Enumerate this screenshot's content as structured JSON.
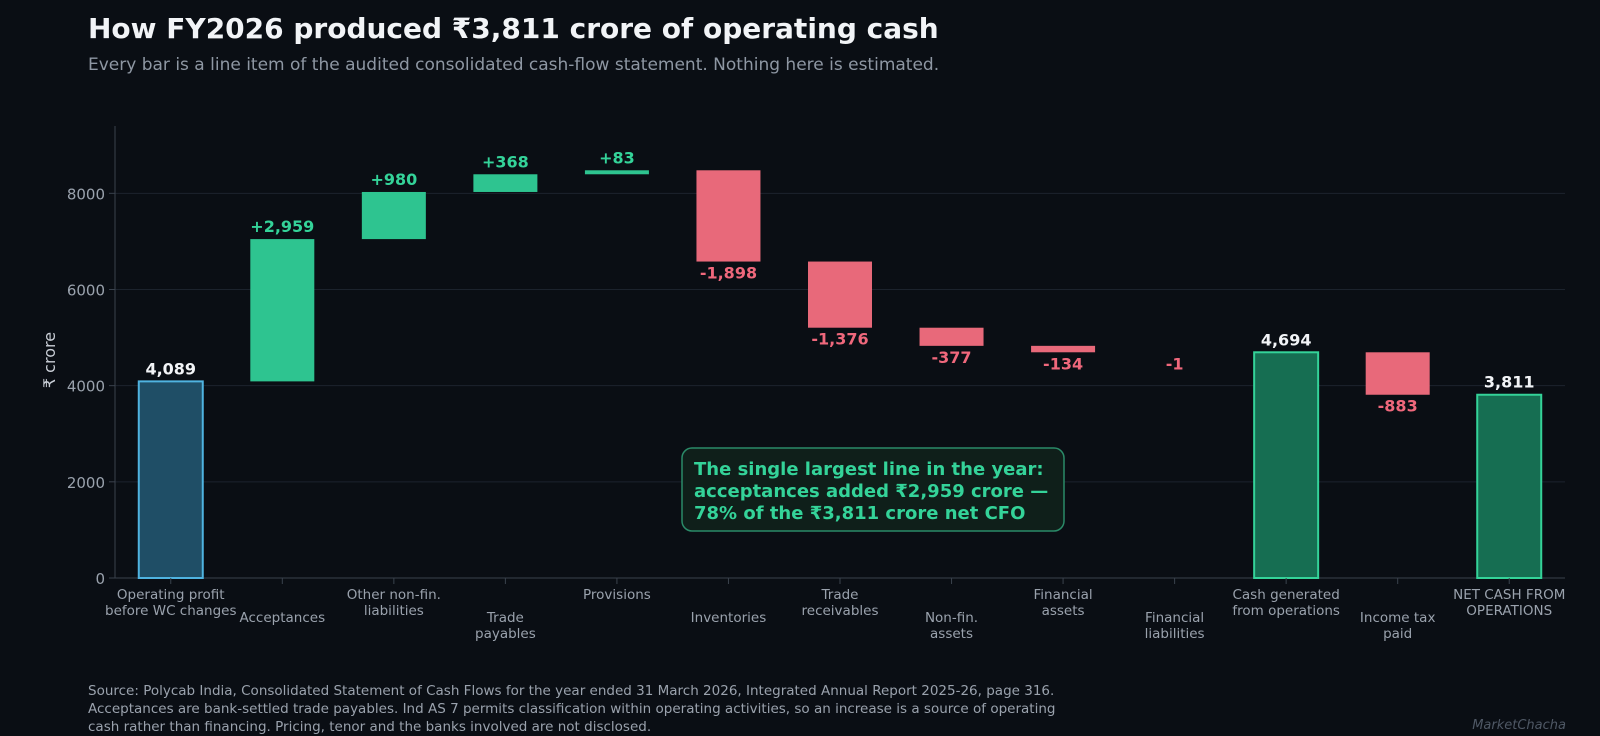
{
  "header": {
    "title": "How FY2026 produced ₹3,811 crore of operating cash",
    "subtitle": "Every bar is a line item of the audited consolidated cash-flow statement. Nothing here is estimated."
  },
  "chart_data": {
    "type": "bar",
    "subtype": "waterfall",
    "ylabel": "₹ crore",
    "ylim": [
      0,
      9400
    ],
    "yticks": [
      0,
      2000,
      4000,
      6000,
      8000
    ],
    "grid": true,
    "categories": [
      [
        "Operating profit",
        "before WC changes"
      ],
      [
        "Acceptances"
      ],
      [
        "Other non-fin.",
        "liabilities"
      ],
      [
        "Trade",
        "payables"
      ],
      [
        "Provisions"
      ],
      [
        "Inventories"
      ],
      [
        "Trade",
        "receivables"
      ],
      [
        "Non-fin.",
        "assets"
      ],
      [
        "Financial",
        "assets"
      ],
      [
        "Financial",
        "liabilities"
      ],
      [
        "Cash generated",
        "from operations"
      ],
      [
        "Income tax",
        "paid"
      ],
      [
        "NET CASH FROM",
        "OPERATIONS"
      ]
    ],
    "bars": [
      {
        "kind": "total",
        "base": 0,
        "top": 4089,
        "value_label": "4,089",
        "fill": "#1f4e66",
        "stroke": "#4fb3e0"
      },
      {
        "kind": "increase",
        "base": 4089,
        "top": 7048,
        "value_label": "+2,959"
      },
      {
        "kind": "increase",
        "base": 7048,
        "top": 8028,
        "value_label": "+980"
      },
      {
        "kind": "increase",
        "base": 8028,
        "top": 8396,
        "value_label": "+368"
      },
      {
        "kind": "increase",
        "base": 8396,
        "top": 8479,
        "value_label": "+83"
      },
      {
        "kind": "decrease",
        "base": 8479,
        "top": 6581,
        "value_label": "-1,898"
      },
      {
        "kind": "decrease",
        "base": 6581,
        "top": 5205,
        "value_label": "-1,376"
      },
      {
        "kind": "decrease",
        "base": 5205,
        "top": 4828,
        "value_label": "-377"
      },
      {
        "kind": "decrease",
        "base": 4828,
        "top": 4694,
        "value_label": "-134"
      },
      {
        "kind": "decrease",
        "base": 4695,
        "top": 4694,
        "value_label": "-1"
      },
      {
        "kind": "total",
        "base": 0,
        "top": 4694,
        "value_label": "4,694",
        "fill": "#166e52",
        "stroke": "#34d399"
      },
      {
        "kind": "decrease",
        "base": 4694,
        "top": 3811,
        "value_label": "-883"
      },
      {
        "kind": "total",
        "base": 0,
        "top": 3811,
        "value_label": "3,811",
        "fill": "#166e52",
        "stroke": "#34d399"
      }
    ],
    "colors": {
      "increase": "#2ec490",
      "decrease": "#e8697a",
      "increase_label": "#34d399",
      "decrease_label": "#f0687c",
      "total_label": "#f2f4f7"
    },
    "annotation": {
      "lines": [
        "The single largest line in the year:",
        "acceptances added ₹2,959 crore —",
        "78% of the ₹3,811 crore net CFO"
      ],
      "color": "#34d399"
    }
  },
  "footer": {
    "source_lines": [
      "Source: Polycab India, Consolidated Statement of Cash Flows for the year ended 31 March 2026, Integrated Annual Report 2025-26, page 316.",
      "Acceptances are bank-settled trade payables. Ind AS 7 permits classification within operating activities, so an increase is a source of operating",
      "cash rather than financing. Pricing, tenor and the banks involved are not disclosed."
    ],
    "watermark": "MarketChacha"
  }
}
